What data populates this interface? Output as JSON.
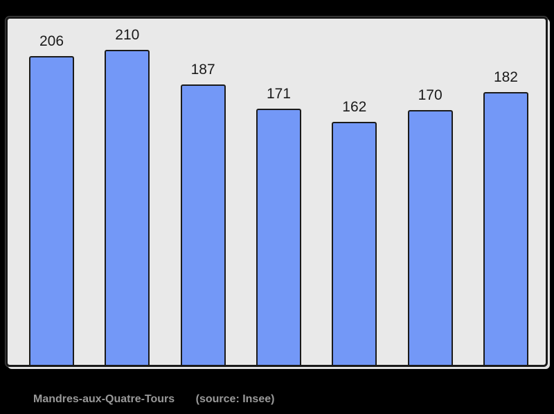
{
  "chart_data": {
    "type": "bar",
    "title": "Mandres-aux-Quatre-Tours",
    "source_note": "(source: Insee)",
    "values": [
      206,
      210,
      187,
      171,
      162,
      170,
      182
    ],
    "xlabel": "",
    "ylabel": "",
    "ylim": [
      0,
      231
    ],
    "grid": false,
    "legend": false,
    "value_labels_shown": true
  },
  "colors": {
    "page_bg": "#000000",
    "plot_bg": "#e9e9e9",
    "bar_fill": "#7398f7",
    "bar_border": "#1a1a1a",
    "frame_border": "#1a1a1a",
    "value_label_text": "#1a1a1a",
    "caption_text": "#999999"
  }
}
